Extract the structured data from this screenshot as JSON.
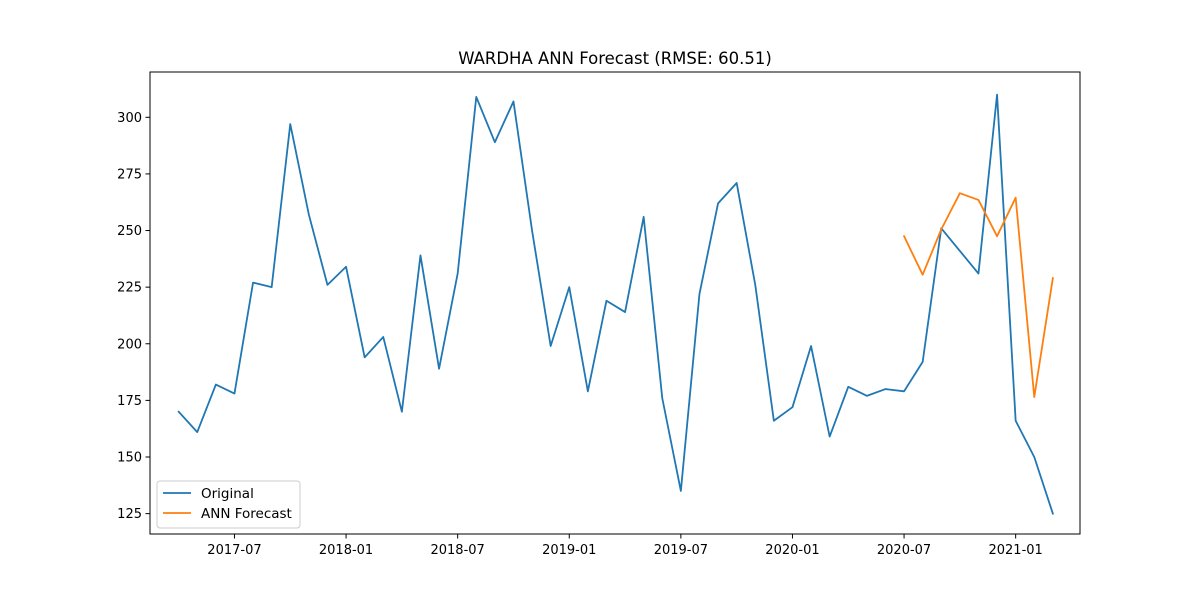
{
  "chart_data": {
    "type": "line",
    "title": "WARDHA ANN Forecast (RMSE: 60.51)",
    "xlabel": "",
    "ylabel": "",
    "xlim": [
      "2017-02-15",
      "2021-04-15"
    ],
    "ylim": [
      116,
      320
    ],
    "x_ticks": [
      "2017-07",
      "2018-01",
      "2018-07",
      "2019-01",
      "2019-07",
      "2020-01",
      "2020-07",
      "2021-01"
    ],
    "y_ticks": [
      125,
      150,
      175,
      200,
      225,
      250,
      275,
      300
    ],
    "grid": false,
    "legend_position": "lower-left",
    "series": [
      {
        "name": "Original",
        "color": "#1f77b4",
        "x": [
          "2017-04",
          "2017-05",
          "2017-06",
          "2017-07",
          "2017-08",
          "2017-09",
          "2017-10",
          "2017-11",
          "2017-12",
          "2018-01",
          "2018-02",
          "2018-03",
          "2018-04",
          "2018-05",
          "2018-06",
          "2018-07",
          "2018-08",
          "2018-09",
          "2018-10",
          "2018-11",
          "2018-12",
          "2019-01",
          "2019-02",
          "2019-03",
          "2019-04",
          "2019-05",
          "2019-06",
          "2019-07",
          "2019-08",
          "2019-09",
          "2019-10",
          "2019-11",
          "2019-12",
          "2020-01",
          "2020-02",
          "2020-03",
          "2020-04",
          "2020-05",
          "2020-06",
          "2020-07",
          "2020-08",
          "2020-09",
          "2020-10",
          "2020-11",
          "2020-12",
          "2021-01",
          "2021-02",
          "2021-03"
        ],
        "values": [
          170,
          161,
          182,
          178,
          227,
          225,
          297,
          257,
          226,
          234,
          194,
          203,
          170,
          239,
          189,
          231,
          309,
          289,
          307,
          250,
          199,
          225,
          179,
          219,
          214,
          256,
          176,
          135,
          222,
          262,
          271,
          226,
          166,
          172,
          199,
          159,
          181,
          177,
          180,
          179,
          192,
          251,
          241,
          231,
          310,
          166,
          150,
          125
        ]
      },
      {
        "name": "ANN Forecast",
        "color": "#ff7f0e",
        "x": [
          "2020-07",
          "2020-08",
          "2020-09",
          "2020-10",
          "2020-11",
          "2020-12",
          "2021-01",
          "2021-02",
          "2021-03"
        ],
        "values": [
          247.5,
          230.5,
          250.5,
          266.5,
          263.5,
          247.5,
          264.5,
          176.5,
          229
        ]
      }
    ]
  }
}
